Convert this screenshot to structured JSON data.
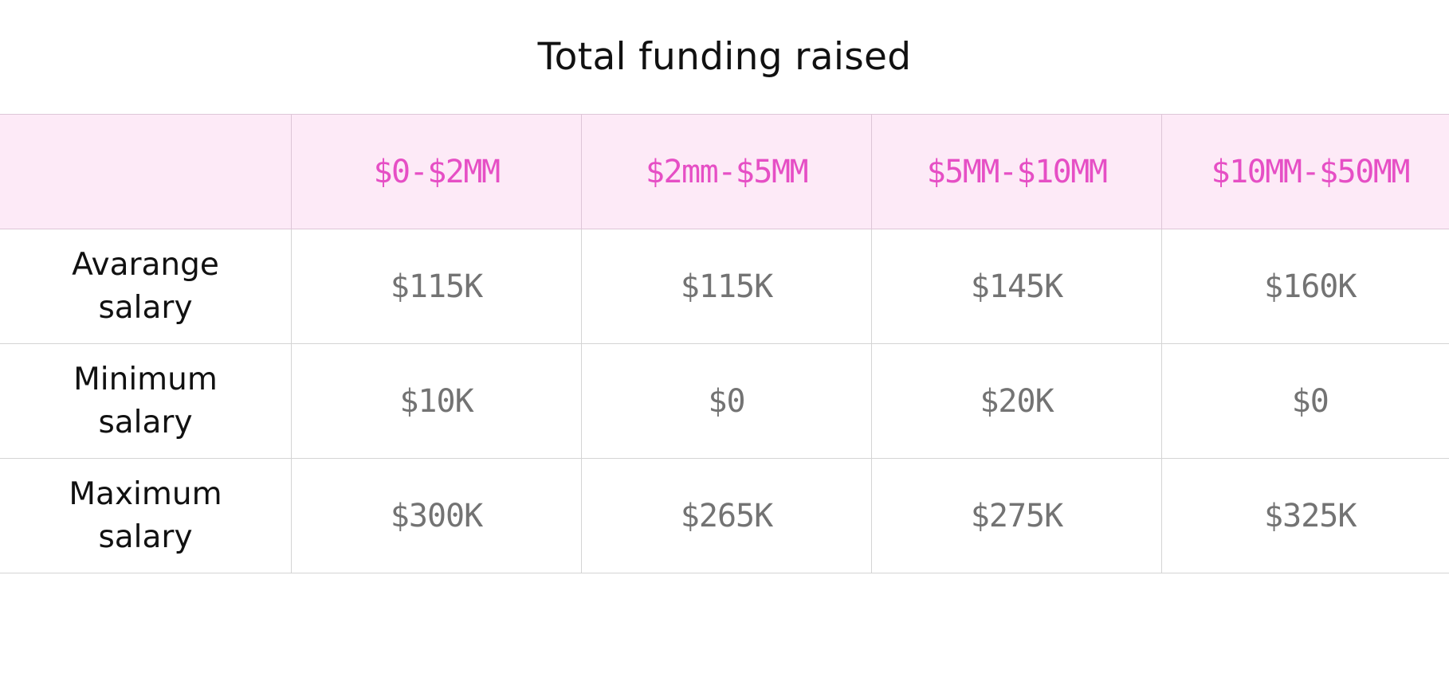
{
  "chart_data": {
    "type": "table",
    "title": "Total funding raised",
    "columns": [
      "",
      "$0-$2MM",
      "$2mm-$5MM",
      "$5MM-$10MM",
      "$10MM-$50MM"
    ],
    "rows": [
      {
        "label": "Avarange salary",
        "values": [
          "$115K",
          "$115K",
          "$145K",
          "$160K"
        ]
      },
      {
        "label": "Minimum salary",
        "values": [
          "$10K",
          "$0",
          "$20K",
          "$0"
        ]
      },
      {
        "label": "Maximum salary",
        "values": [
          "$300K",
          "$265K",
          "$275K",
          "$325K"
        ]
      }
    ]
  },
  "colors": {
    "header_background": "#fdeaf7",
    "header_text": "#e64fc5",
    "value_text": "#737373",
    "label_text": "#111111",
    "grid_line": "#d4d4d4"
  }
}
